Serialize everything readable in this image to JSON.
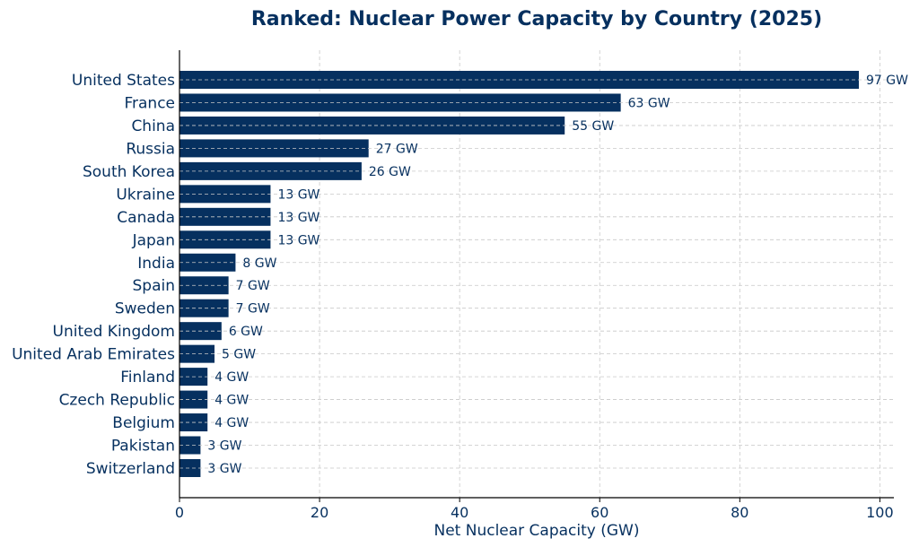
{
  "chart_data": {
    "type": "bar",
    "orientation": "horizontal",
    "title": "Ranked: Nuclear Power Capacity by Country (2025)",
    "xlabel": "Net Nuclear Capacity (GW)",
    "ylabel": "",
    "xlim": [
      0,
      102
    ],
    "xticks": [
      0,
      20,
      40,
      60,
      80,
      100
    ],
    "categories": [
      "United States",
      "France",
      "China",
      "Russia",
      "South Korea",
      "Ukraine",
      "Canada",
      "Japan",
      "India",
      "Spain",
      "Sweden",
      "United Kingdom",
      "United Arab Emirates",
      "Finland",
      "Czech Republic",
      "Belgium",
      "Pakistan",
      "Switzerland"
    ],
    "values": [
      97,
      63,
      55,
      27,
      26,
      13,
      13,
      13,
      8,
      7,
      7,
      6,
      5,
      4,
      4,
      4,
      3,
      3
    ],
    "value_labels": [
      "97 GW",
      "63 GW",
      "55 GW",
      "27 GW",
      "26 GW",
      "13 GW",
      "13 GW",
      "13 GW",
      "8 GW",
      "7 GW",
      "7 GW",
      "6 GW",
      "5 GW",
      "4 GW",
      "4 GW",
      "4 GW",
      "3 GW",
      "3 GW"
    ],
    "grid": true,
    "colors": {
      "bar": "#06305f",
      "text": "#06305f",
      "grid": "#c8c8c8",
      "axis": "#000000"
    }
  }
}
